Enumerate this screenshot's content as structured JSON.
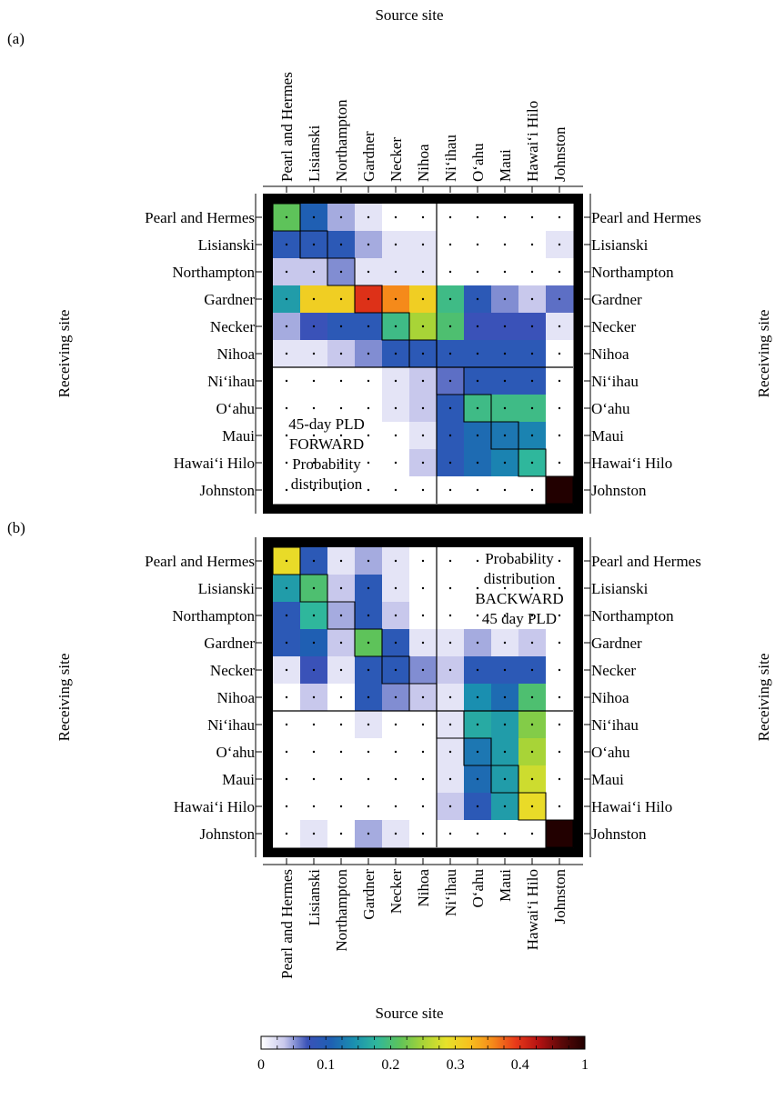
{
  "chart_data": [
    {
      "type": "heatmap",
      "panel_label": "(a)",
      "title": "Source site",
      "xlabel": "Source site",
      "ylabel": "Receiving site",
      "annotation": [
        "45-day PLD",
        "FORWARD",
        "Probability",
        "distribution"
      ],
      "categories_x": [
        "Pearl and Hermes",
        "Lisianski",
        "Northampton",
        "Gardner",
        "Necker",
        "Nihoa",
        "Ni‘ihau",
        "O‘ahu",
        "Maui",
        "Hawai‘i Hilo",
        "Johnston"
      ],
      "categories_y": [
        "Pearl and Hermes",
        "Lisianski",
        "Northampton",
        "Gardner",
        "Necker",
        "Nihoa",
        "Ni‘ihau",
        "O‘ahu",
        "Maui",
        "Hawai‘i Hilo",
        "Johnston"
      ],
      "values": [
        [
          0.18,
          0.08,
          0.03,
          0.01,
          0,
          0,
          0,
          0,
          0,
          0,
          0
        ],
        [
          0.07,
          0.07,
          0.07,
          0.03,
          0.01,
          0.01,
          0,
          0,
          0,
          0,
          0.01
        ],
        [
          0.02,
          0.02,
          0.04,
          0.01,
          0.01,
          0.01,
          0,
          0,
          0,
          0,
          0
        ],
        [
          0.13,
          0.3,
          0.3,
          0.43,
          0.36,
          0.3,
          0.16,
          0.07,
          0.04,
          0.02,
          0.05
        ],
        [
          0.03,
          0.06,
          0.07,
          0.07,
          0.16,
          0.22,
          0.17,
          0.06,
          0.06,
          0.06,
          0.01
        ],
        [
          0.01,
          0.01,
          0.02,
          0.04,
          0.07,
          0.07,
          0.07,
          0.07,
          0.07,
          0.07,
          0
        ],
        [
          0,
          0,
          0,
          0,
          0.01,
          0.02,
          0.05,
          0.07,
          0.07,
          0.07,
          0
        ],
        [
          0,
          0,
          0,
          0,
          0.01,
          0.02,
          0.07,
          0.16,
          0.16,
          0.16,
          0
        ],
        [
          0,
          0,
          0,
          0,
          0,
          0.01,
          0.07,
          0.09,
          0.1,
          0.11,
          0
        ],
        [
          0,
          0,
          0,
          0,
          0,
          0.02,
          0.07,
          0.09,
          0.11,
          0.15,
          0
        ],
        [
          0,
          0,
          0,
          0,
          0,
          0,
          0,
          0,
          0,
          0,
          1.0
        ]
      ],
      "colorbar": {
        "ticks": [
          0,
          0.1,
          0.2,
          0.3,
          0.4,
          1
        ],
        "range": [
          0,
          1
        ]
      },
      "grid": false
    },
    {
      "type": "heatmap",
      "panel_label": "(b)",
      "xlabel": "Source site",
      "ylabel": "Receiving site",
      "annotation": [
        "Probability",
        "distribution",
        "BACKWARD",
        "45 day PLD"
      ],
      "categories_x": [
        "Pearl and Hermes",
        "Lisianski",
        "Northampton",
        "Gardner",
        "Necker",
        "Nihoa",
        "Ni‘ihau",
        "O‘ahu",
        "Maui",
        "Hawai‘i Hilo",
        "Johnston"
      ],
      "categories_y": [
        "Pearl and Hermes",
        "Lisianski",
        "Northampton",
        "Gardner",
        "Necker",
        "Nihoa",
        "Ni‘ihau",
        "O‘ahu",
        "Maui",
        "Hawai‘i Hilo",
        "Johnston"
      ],
      "values": [
        [
          0.28,
          0.07,
          0.01,
          0.03,
          0.01,
          0,
          0,
          0,
          0,
          0,
          0
        ],
        [
          0.13,
          0.17,
          0.02,
          0.07,
          0.01,
          0,
          0,
          0,
          0,
          0,
          0
        ],
        [
          0.07,
          0.15,
          0.03,
          0.07,
          0.02,
          0,
          0,
          0,
          0,
          0,
          0
        ],
        [
          0.07,
          0.08,
          0.02,
          0.18,
          0.07,
          0.01,
          0.01,
          0.03,
          0.01,
          0.02,
          0
        ],
        [
          0.01,
          0.06,
          0.01,
          0.07,
          0.07,
          0.04,
          0.02,
          0.07,
          0.07,
          0.07,
          0
        ],
        [
          0,
          0.02,
          0,
          0.07,
          0.04,
          0.02,
          0.01,
          0.12,
          0.09,
          0.17,
          0
        ],
        [
          0,
          0,
          0,
          0.01,
          0,
          0,
          0.01,
          0.14,
          0.13,
          0.2,
          0
        ],
        [
          0,
          0,
          0,
          0,
          0,
          0,
          0.01,
          0.1,
          0.13,
          0.22,
          0
        ],
        [
          0,
          0,
          0,
          0,
          0,
          0,
          0.01,
          0.09,
          0.13,
          0.25,
          0
        ],
        [
          0,
          0,
          0,
          0,
          0,
          0,
          0.02,
          0.07,
          0.13,
          0.28,
          0
        ],
        [
          0,
          0.01,
          0,
          0.03,
          0.01,
          0,
          0,
          0,
          0,
          0,
          1.0
        ]
      ],
      "colorbar": {
        "ticks": [
          0,
          0.1,
          0.2,
          0.3,
          0.4,
          1
        ],
        "range": [
          0,
          1
        ]
      },
      "grid": false
    }
  ],
  "colorbar": {
    "colors": [
      "#ffffff",
      "#c8c8ec",
      "#3a52b8",
      "#1f5fb3",
      "#1a8fb0",
      "#2fb79c",
      "#5ec35a",
      "#a8d437",
      "#e6e22a",
      "#f7c11e",
      "#f58a1a",
      "#e83a1a",
      "#b51212",
      "#5a0808",
      "#220000"
    ],
    "tick_labels": [
      "0",
      "0.1",
      "0.2",
      "0.3",
      "0.4",
      "1"
    ]
  }
}
